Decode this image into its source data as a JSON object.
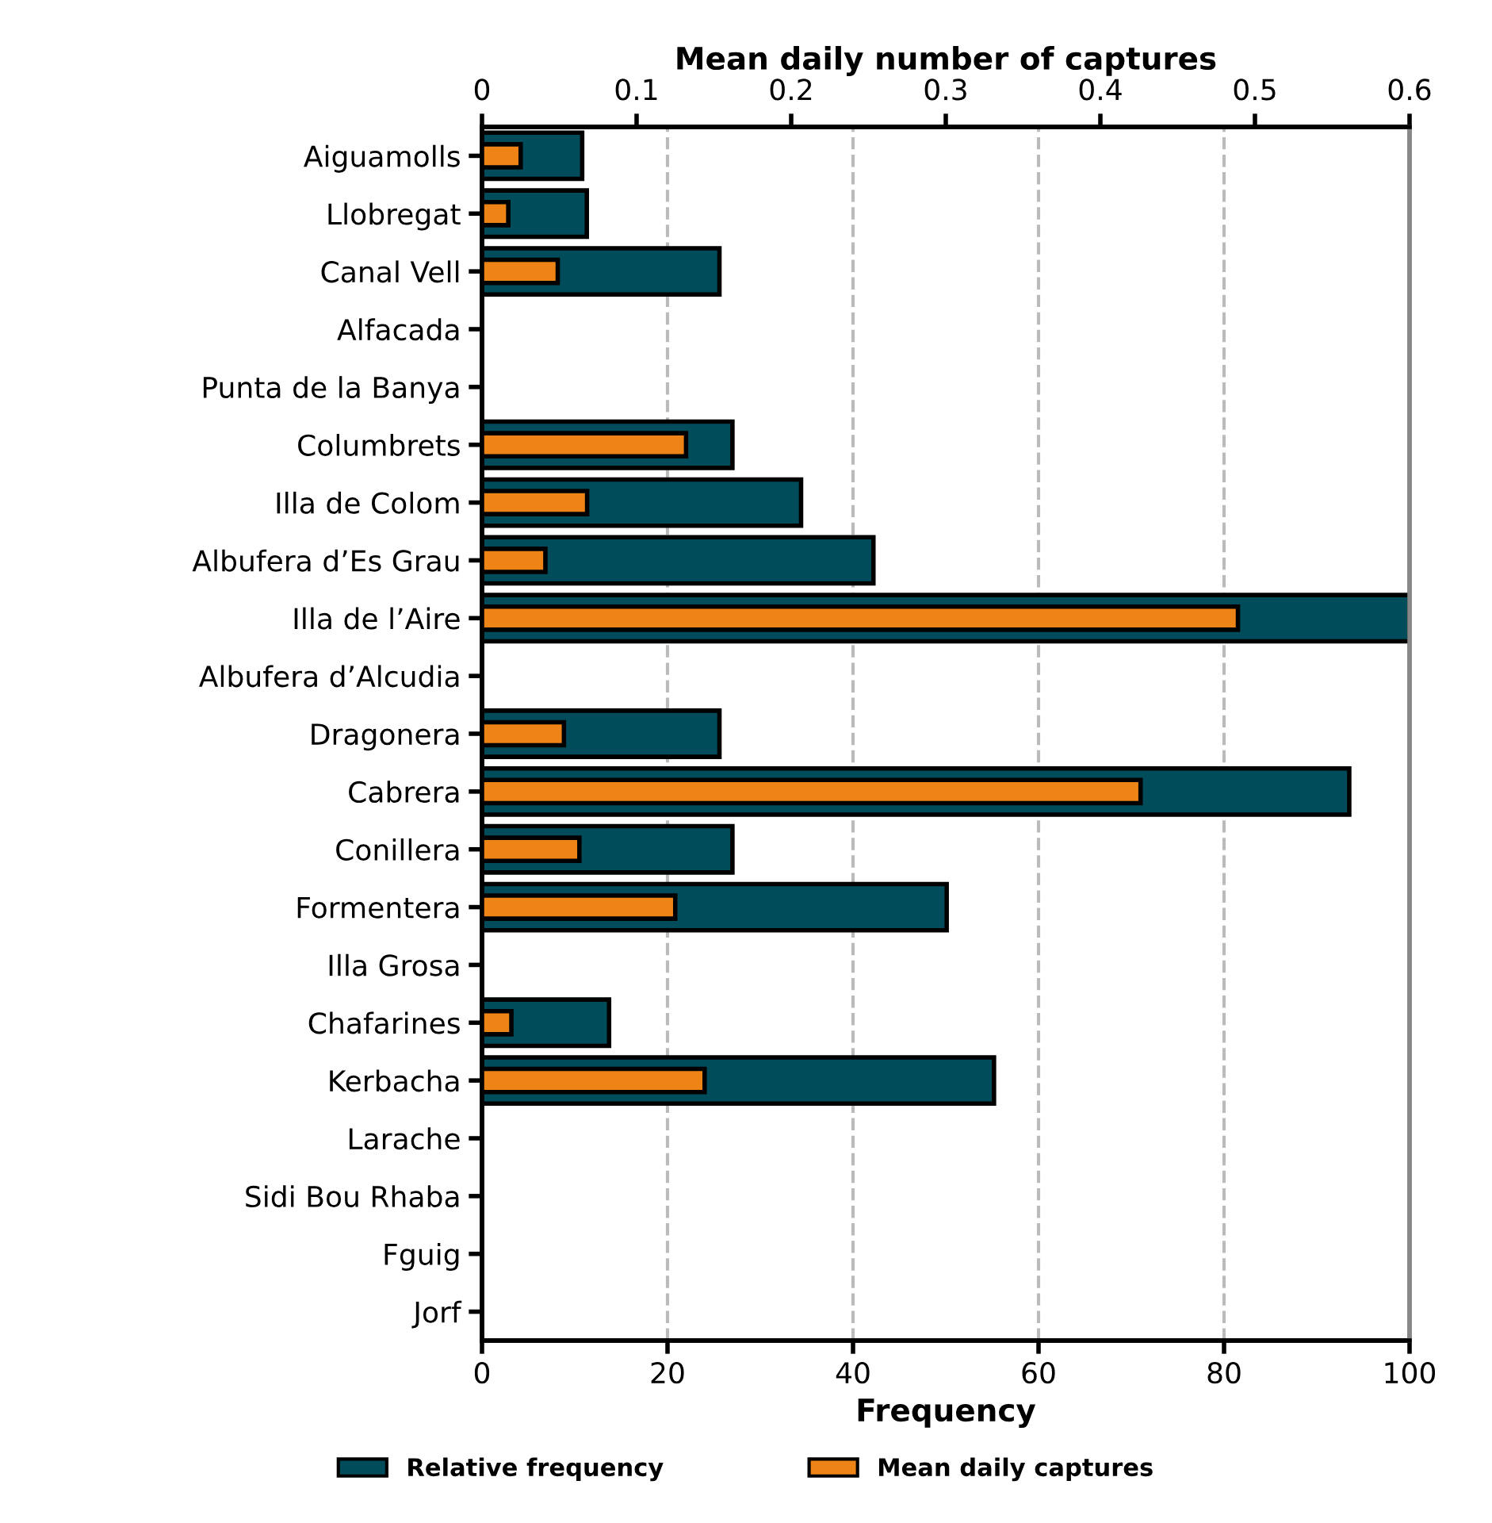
{
  "chart_data": {
    "type": "bar",
    "orientation": "horizontal",
    "categories": [
      "Aiguamolls",
      "Llobregat",
      "Canal Vell",
      "Alfacada",
      "Punta de la Banya",
      "Columbrets",
      "Illa de Colom",
      "Albufera d’Es Grau",
      "Illa de l’Aire",
      "Albufera d’Alcudia",
      "Dragonera",
      "Cabrera",
      "Conillera",
      "Formentera",
      "Illa Grosa",
      "Chafarines",
      "Kerbacha",
      "Larache",
      "Sidi Bou Rhaba",
      "Fguig",
      "Jorf"
    ],
    "series": [
      {
        "name": "Relative frequency",
        "color": "#004c5a",
        "values": [
          10.8,
          11.3,
          25.6,
          null,
          null,
          27.0,
          34.4,
          42.2,
          100,
          null,
          25.6,
          93.5,
          27.0,
          50.1,
          null,
          13.7,
          55.2,
          null,
          null,
          null,
          null
        ]
      },
      {
        "name": "Mean daily captures",
        "color": "#ee8416",
        "axis": "x2",
        "values": [
          0.025,
          0.017,
          0.049,
          null,
          null,
          0.132,
          0.068,
          0.041,
          0.489,
          null,
          0.053,
          0.426,
          0.063,
          0.125,
          null,
          0.019,
          0.144,
          null,
          null,
          null,
          null
        ]
      }
    ],
    "xlabel": "Frequency",
    "x2label": "Mean daily number of captures",
    "xlim": [
      0,
      100
    ],
    "xticks": [
      0,
      20,
      40,
      60,
      80,
      100
    ],
    "x2lim": [
      0,
      0.6
    ],
    "x2ticks": [
      0,
      0.1,
      0.2,
      0.3,
      0.4,
      0.5,
      0.6
    ],
    "grid": "x",
    "legend": "bottom"
  }
}
